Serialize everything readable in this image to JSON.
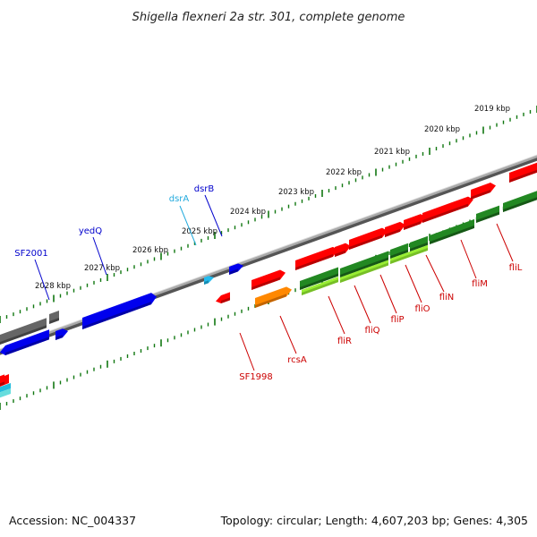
{
  "title": "Shigella flexneri 2a str. 301, complete genome",
  "footer": {
    "accession": "Accession: NC_004337",
    "stats": "Topology: circular; Length: 4,607,203 bp; Genes: 4,305"
  },
  "ticks": [
    "2019 kbp",
    "2020 kbp",
    "2021 kbp",
    "2022 kbp",
    "2023 kbp",
    "2024 kbp",
    "2025 kbp",
    "2026 kbp",
    "2027 kbp",
    "2028 kbp"
  ],
  "gene_labels_top": [
    {
      "name": "SF2001",
      "color": "#0000cc"
    },
    {
      "name": "yedQ",
      "color": "#0000cc"
    },
    {
      "name": "dsrA",
      "color": "#22aadd"
    },
    {
      "name": "dsrB",
      "color": "#0000cc"
    }
  ],
  "gene_labels_bottom": [
    {
      "name": "SF1998",
      "color": "#cc0000"
    },
    {
      "name": "rcsA",
      "color": "#cc0000"
    },
    {
      "name": "fliR",
      "color": "#cc0000"
    },
    {
      "name": "fliQ",
      "color": "#cc0000"
    },
    {
      "name": "fliP",
      "color": "#cc0000"
    },
    {
      "name": "fliO",
      "color": "#cc0000"
    },
    {
      "name": "fliN",
      "color": "#cc0000"
    },
    {
      "name": "fliM",
      "color": "#cc0000"
    },
    {
      "name": "fliL",
      "color": "#cc0000"
    }
  ],
  "colors": {
    "forward_gene": "#ff0000",
    "reverse_gene": "#0000ee",
    "rna_gene": "#22bbee",
    "other_gene": "#ff8800",
    "pseudo_gene": "#666666",
    "cog_track": "#228822",
    "cog_light": "#99ee33",
    "tick": "#117711",
    "backbone": "#888888"
  }
}
